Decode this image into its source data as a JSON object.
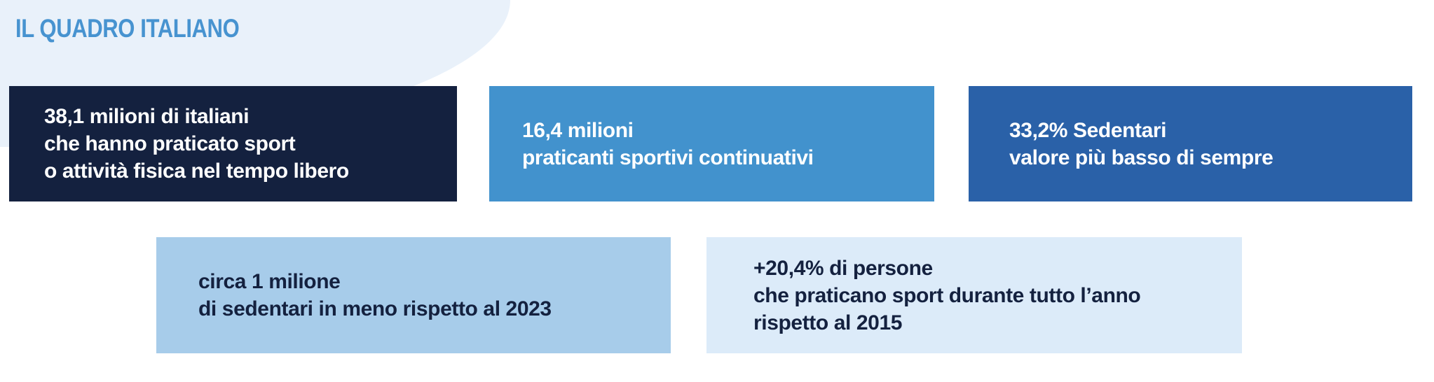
{
  "header": {
    "title": "IL QUADRO ITALIANO"
  },
  "stats": [
    {
      "id": "italians-active",
      "lines": [
        "38,1 milioni di italiani",
        "che hanno praticato sport",
        "o attività fisica nel tempo libero"
      ]
    },
    {
      "id": "continuous-practitioners",
      "lines": [
        "16,4 milioni",
        "praticanti sportivi continuativi"
      ]
    },
    {
      "id": "sedentary-rate",
      "lines": [
        "33,2% Sedentari",
        "valore più basso di sempre"
      ]
    },
    {
      "id": "sedentary-decrease",
      "lines": [
        "circa 1 milione",
        "di sedentari in meno rispetto al 2023"
      ]
    },
    {
      "id": "year-round-increase",
      "lines": [
        "+20,4% di persone",
        "che praticano sport durante tutto l’anno",
        "rispetto al 2015"
      ]
    }
  ],
  "colors": {
    "page_background": "#ffffff",
    "header_shape": "#e9f1fa",
    "title": "#4793d0",
    "card_navy": "#14213f",
    "card_blue": "#4292cd",
    "card_dark_blue": "#2a61a8",
    "card_light_blue": "#a7ccea",
    "card_pale_blue": "#dcebf9",
    "text_light": "#ffffff",
    "text_dark": "#14213f"
  }
}
